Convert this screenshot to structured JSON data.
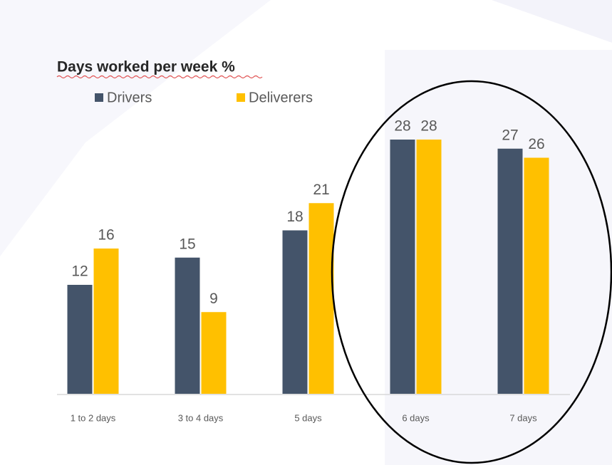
{
  "chart_data": {
    "type": "bar",
    "title": "Days worked per week %",
    "categories": [
      "1 to 2 days",
      "3 to 4 days",
      "5 days",
      "6 days",
      "7 days"
    ],
    "series": [
      {
        "name": "Drivers",
        "color": "#44546a",
        "values": [
          12,
          15,
          18,
          28,
          27
        ]
      },
      {
        "name": "Deliverers",
        "color": "#ffc000",
        "values": [
          16,
          9,
          21,
          28,
          26
        ]
      }
    ],
    "ylim": [
      0,
      30
    ],
    "grid": false,
    "legend": "top-left"
  }
}
